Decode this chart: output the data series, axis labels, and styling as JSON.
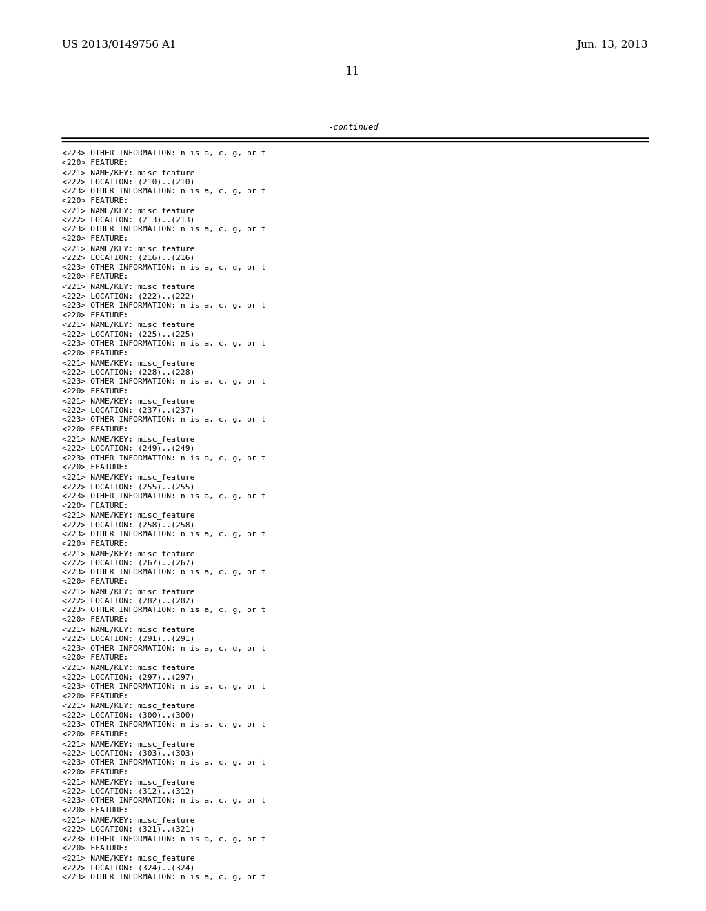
{
  "patent_number": "US 2013/0149756 A1",
  "date": "Jun. 13, 2013",
  "page_number": "11",
  "continued_label": "-continued",
  "background_color": "#ffffff",
  "text_color": "#000000",
  "header_font_size": 11.0,
  "page_num_font_size": 12.0,
  "body_font_size": 8.2,
  "content_lines": [
    "<223> OTHER INFORMATION: n is a, c, g, or t",
    "<220> FEATURE:",
    "<221> NAME/KEY: misc_feature",
    "<222> LOCATION: (210)..(210)",
    "<223> OTHER INFORMATION: n is a, c, g, or t",
    "<220> FEATURE:",
    "<221> NAME/KEY: misc_feature",
    "<222> LOCATION: (213)..(213)",
    "<223> OTHER INFORMATION: n is a, c, g, or t",
    "<220> FEATURE:",
    "<221> NAME/KEY: misc_feature",
    "<222> LOCATION: (216)..(216)",
    "<223> OTHER INFORMATION: n is a, c, g, or t",
    "<220> FEATURE:",
    "<221> NAME/KEY: misc_feature",
    "<222> LOCATION: (222)..(222)",
    "<223> OTHER INFORMATION: n is a, c, g, or t",
    "<220> FEATURE:",
    "<221> NAME/KEY: misc_feature",
    "<222> LOCATION: (225)..(225)",
    "<223> OTHER INFORMATION: n is a, c, g, or t",
    "<220> FEATURE:",
    "<221> NAME/KEY: misc_feature",
    "<222> LOCATION: (228)..(228)",
    "<223> OTHER INFORMATION: n is a, c, g, or t",
    "<220> FEATURE:",
    "<221> NAME/KEY: misc_feature",
    "<222> LOCATION: (237)..(237)",
    "<223> OTHER INFORMATION: n is a, c, g, or t",
    "<220> FEATURE:",
    "<221> NAME/KEY: misc_feature",
    "<222> LOCATION: (249)..(249)",
    "<223> OTHER INFORMATION: n is a, c, g, or t",
    "<220> FEATURE:",
    "<221> NAME/KEY: misc_feature",
    "<222> LOCATION: (255)..(255)",
    "<223> OTHER INFORMATION: n is a, c, g, or t",
    "<220> FEATURE:",
    "<221> NAME/KEY: misc_feature",
    "<222> LOCATION: (258)..(258)",
    "<223> OTHER INFORMATION: n is a, c, g, or t",
    "<220> FEATURE:",
    "<221> NAME/KEY: misc_feature",
    "<222> LOCATION: (267)..(267)",
    "<223> OTHER INFORMATION: n is a, c, g, or t",
    "<220> FEATURE:",
    "<221> NAME/KEY: misc_feature",
    "<222> LOCATION: (282)..(282)",
    "<223> OTHER INFORMATION: n is a, c, g, or t",
    "<220> FEATURE:",
    "<221> NAME/KEY: misc_feature",
    "<222> LOCATION: (291)..(291)",
    "<223> OTHER INFORMATION: n is a, c, g, or t",
    "<220> FEATURE:",
    "<221> NAME/KEY: misc_feature",
    "<222> LOCATION: (297)..(297)",
    "<223> OTHER INFORMATION: n is a, c, g, or t",
    "<220> FEATURE:",
    "<221> NAME/KEY: misc_feature",
    "<222> LOCATION: (300)..(300)",
    "<223> OTHER INFORMATION: n is a, c, g, or t",
    "<220> FEATURE:",
    "<221> NAME/KEY: misc_feature",
    "<222> LOCATION: (303)..(303)",
    "<223> OTHER INFORMATION: n is a, c, g, or t",
    "<220> FEATURE:",
    "<221> NAME/KEY: misc_feature",
    "<222> LOCATION: (312)..(312)",
    "<223> OTHER INFORMATION: n is a, c, g, or t",
    "<220> FEATURE:",
    "<221> NAME/KEY: misc_feature",
    "<222> LOCATION: (321)..(321)",
    "<223> OTHER INFORMATION: n is a, c, g, or t",
    "<220> FEATURE:",
    "<221> NAME/KEY: misc_feature",
    "<222> LOCATION: (324)..(324)",
    "<223> OTHER INFORMATION: n is a, c, g, or t"
  ]
}
